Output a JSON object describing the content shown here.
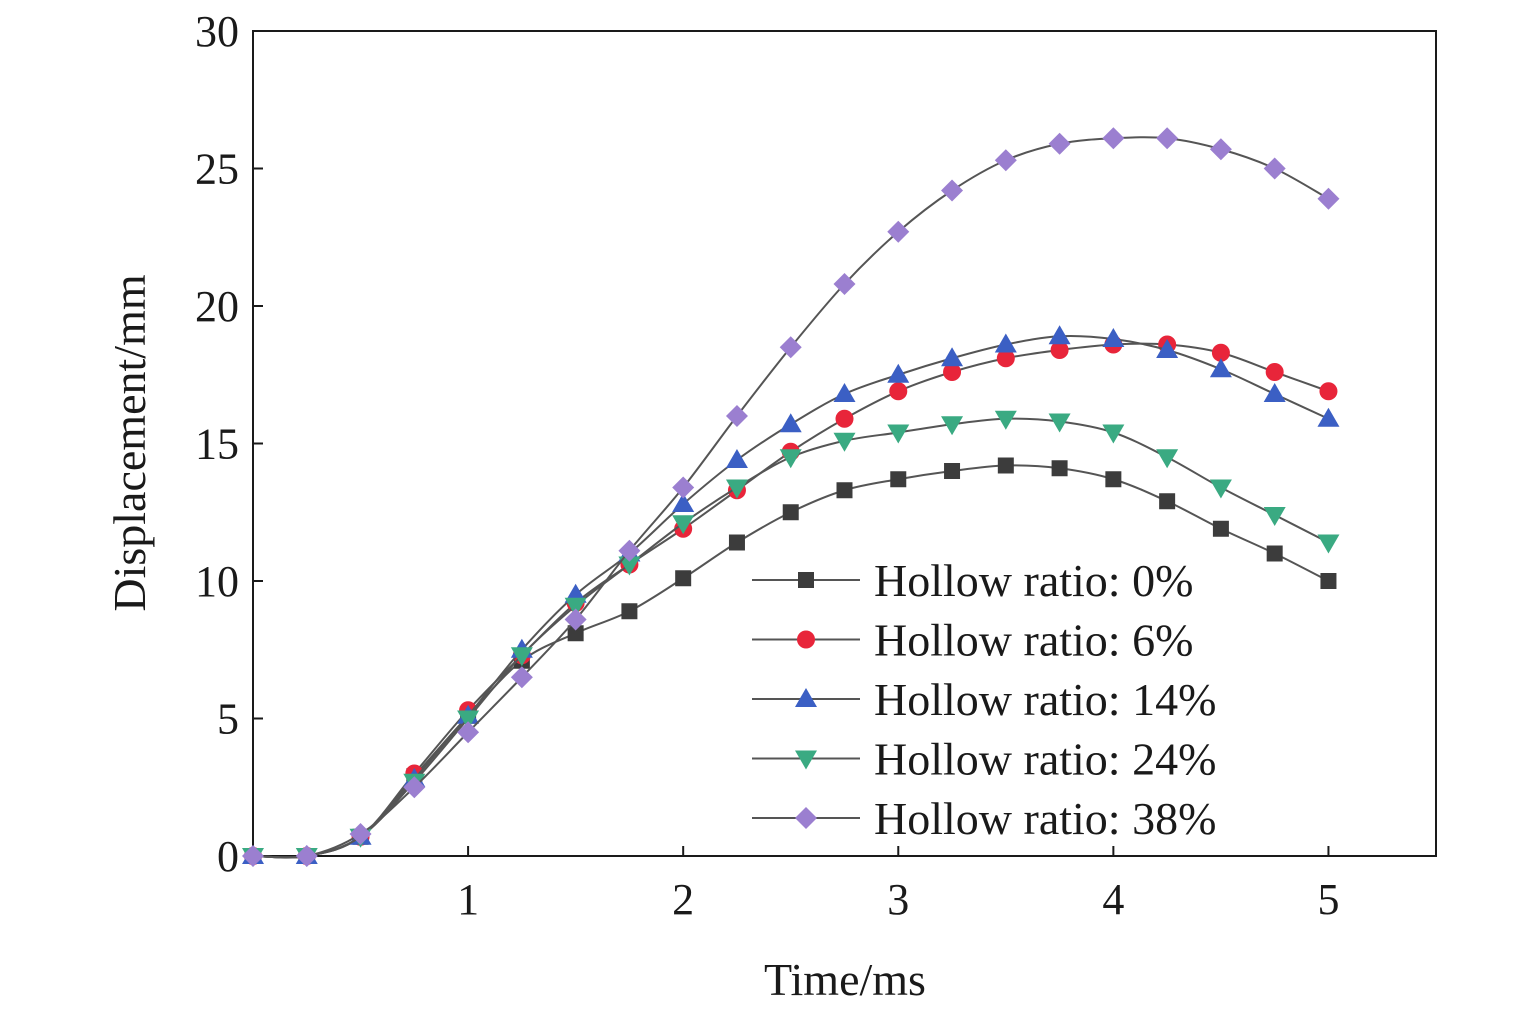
{
  "chart_data": {
    "type": "line",
    "xlabel": "Time/ms",
    "ylabel": "Displacement/mm",
    "xlim": [
      0,
      5.5
    ],
    "ylim": [
      0,
      30
    ],
    "xticks": [
      1,
      2,
      3,
      4,
      5
    ],
    "yticks": [
      0,
      5,
      10,
      15,
      20,
      25,
      30
    ],
    "grid": false,
    "legend_position": "lower-right",
    "x": [
      0,
      0.25,
      0.5,
      0.75,
      1,
      1.25,
      1.5,
      1.75,
      2,
      2.25,
      2.5,
      2.75,
      3,
      3.25,
      3.5,
      3.75,
      4,
      4.25,
      4.5,
      4.75,
      5
    ],
    "series": [
      {
        "name": "Hollow ratio: 0%",
        "color": "#3c3c3c",
        "marker": "square",
        "values": [
          0,
          0,
          0.7,
          2.9,
          5.1,
          7.1,
          8.1,
          8.9,
          10.1,
          11.4,
          12.5,
          13.3,
          13.7,
          14.0,
          14.2,
          14.1,
          13.7,
          12.9,
          11.9,
          11.0,
          10.0
        ]
      },
      {
        "name": "Hollow ratio: 6%",
        "color": "#e8253a",
        "marker": "circle",
        "values": [
          0,
          0,
          0.7,
          3.0,
          5.3,
          7.3,
          9.2,
          10.6,
          11.9,
          13.3,
          14.7,
          15.9,
          16.9,
          17.6,
          18.1,
          18.4,
          18.6,
          18.6,
          18.3,
          17.6,
          16.9
        ]
      },
      {
        "name": "Hollow ratio: 14%",
        "color": "#3b5fc4",
        "marker": "triangle-up",
        "values": [
          0,
          0,
          0.7,
          2.8,
          5.1,
          7.5,
          9.5,
          11.0,
          12.8,
          14.4,
          15.7,
          16.8,
          17.5,
          18.1,
          18.6,
          18.9,
          18.8,
          18.4,
          17.7,
          16.8,
          15.9
        ]
      },
      {
        "name": "Hollow ratio: 24%",
        "color": "#3aaa82",
        "marker": "triangle-down",
        "values": [
          0,
          0,
          0.7,
          2.7,
          5.0,
          7.3,
          9.1,
          10.6,
          12.1,
          13.4,
          14.5,
          15.1,
          15.4,
          15.7,
          15.9,
          15.8,
          15.4,
          14.5,
          13.4,
          12.4,
          11.4
        ]
      },
      {
        "name": "Hollow ratio: 38%",
        "color": "#9b7fd0",
        "marker": "diamond",
        "values": [
          0,
          0,
          0.8,
          2.5,
          4.5,
          6.5,
          8.6,
          11.1,
          13.4,
          16.0,
          18.5,
          20.8,
          22.7,
          24.2,
          25.3,
          25.9,
          26.1,
          26.1,
          25.7,
          25.0,
          23.9
        ]
      }
    ]
  }
}
